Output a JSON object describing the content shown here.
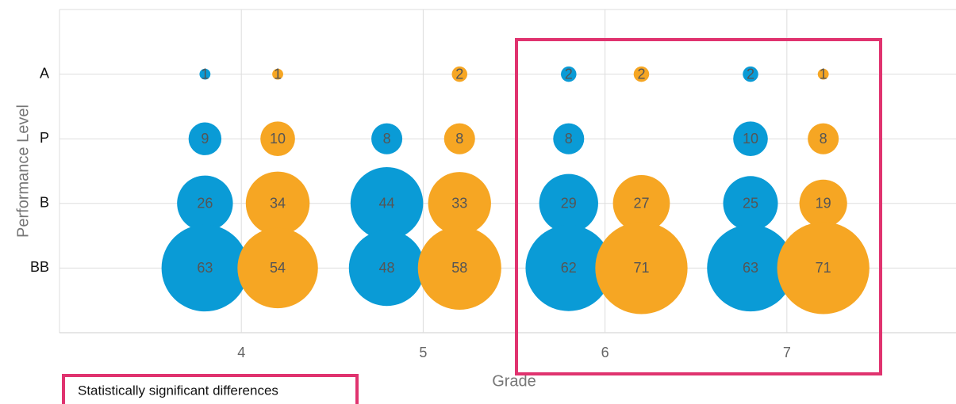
{
  "chart_data": {
    "type": "bubble",
    "x_label": "Grade",
    "y_label": "Performance Level",
    "y_categories": [
      "A",
      "P",
      "B",
      "BB"
    ],
    "xlim": [
      3,
      7.93
    ],
    "xticks": [
      4,
      5,
      6,
      7
    ],
    "grid": true,
    "annotation": "Statistically significant differences",
    "series": [
      {
        "color": "#0a9bd6",
        "x": [
          3.8,
          3.8,
          3.8,
          3.8,
          4.8,
          4.8,
          4.8,
          5.8,
          5.8,
          5.8,
          5.8,
          6.8,
          6.8,
          6.8,
          6.8
        ],
        "y": [
          "A",
          "P",
          "B",
          "BB",
          "P",
          "B",
          "BB",
          "A",
          "P",
          "B",
          "BB",
          "A",
          "P",
          "B",
          "BB"
        ],
        "values": [
          1,
          9,
          26,
          63,
          8,
          44,
          48,
          2,
          8,
          29,
          62,
          2,
          10,
          25,
          63
        ]
      },
      {
        "color": "#f6a623",
        "x": [
          4.2,
          4.2,
          4.2,
          4.2,
          5.2,
          5.2,
          5.2,
          5.2,
          6.2,
          6.2,
          6.2,
          7.2,
          7.2,
          7.2,
          7.2
        ],
        "y": [
          "A",
          "P",
          "B",
          "BB",
          "A",
          "P",
          "B",
          "BB",
          "A",
          "B",
          "BB",
          "A",
          "P",
          "B",
          "BB"
        ],
        "values": [
          1,
          10,
          34,
          54,
          2,
          8,
          33,
          58,
          2,
          27,
          71,
          1,
          8,
          19,
          71
        ]
      }
    ]
  }
}
